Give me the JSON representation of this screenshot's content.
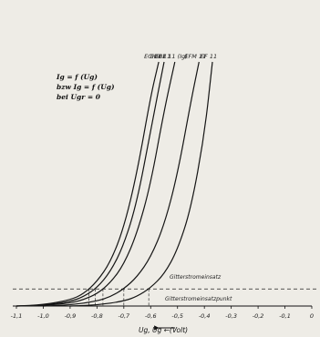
{
  "chart_data": {
    "type": "line",
    "xlabel": "Ug, Ug ←(Volt)",
    "formula": [
      "Ig = f (Ug)",
      "bzw Ig = f (Ug)",
      "bei Ugr = 0"
    ],
    "xlim": [
      -1.1,
      0
    ],
    "x_ticks": [
      -1.1,
      -1.0,
      -0.9,
      -0.8,
      -0.7,
      -0.6,
      -0.5,
      -0.4,
      -0.3,
      -0.2,
      -0.1,
      0
    ],
    "x_tick_labels": [
      "-1,1",
      "-1,0",
      "-0,9",
      "-0,8",
      "-0,7",
      "-0,6",
      "-0,5",
      "-0,4",
      "-0,3",
      "-0,2",
      "-0,1",
      "0"
    ],
    "ylim": [
      0,
      1
    ],
    "grid": false,
    "series": [
      {
        "name": "ECH 11",
        "x": [
          -1.1,
          -1.0,
          -0.9,
          -0.85,
          -0.8,
          -0.75,
          -0.7,
          -0.65,
          -0.6,
          -0.57
        ],
        "y": [
          0.0,
          0.005,
          0.025,
          0.05,
          0.1,
          0.18,
          0.32,
          0.55,
          0.86,
          1.0
        ]
      },
      {
        "name": "EBF 11",
        "x": [
          -1.1,
          -1.0,
          -0.9,
          -0.85,
          -0.8,
          -0.75,
          -0.7,
          -0.65,
          -0.6,
          -0.55
        ],
        "y": [
          0.0,
          0.003,
          0.018,
          0.038,
          0.075,
          0.14,
          0.25,
          0.43,
          0.72,
          1.0
        ]
      },
      {
        "name": "EBF 11 (Ig)",
        "x": [
          -1.1,
          -1.0,
          -0.9,
          -0.85,
          -0.8,
          -0.75,
          -0.7,
          -0.65,
          -0.6,
          -0.55,
          -0.51
        ],
        "y": [
          0.0,
          0.002,
          0.012,
          0.026,
          0.05,
          0.095,
          0.17,
          0.3,
          0.5,
          0.8,
          1.0
        ]
      },
      {
        "name": "EFM 11",
        "x": [
          -1.0,
          -0.9,
          -0.8,
          -0.75,
          -0.7,
          -0.65,
          -0.6,
          -0.55,
          -0.5,
          -0.45,
          -0.42
        ],
        "y": [
          0.0,
          0.004,
          0.02,
          0.038,
          0.07,
          0.12,
          0.2,
          0.33,
          0.54,
          0.84,
          1.0
        ]
      },
      {
        "name": "EF 11",
        "x": [
          -0.9,
          -0.8,
          -0.7,
          -0.65,
          -0.6,
          -0.55,
          -0.5,
          -0.45,
          -0.4,
          -0.37
        ],
        "y": [
          0.0,
          0.004,
          0.02,
          0.04,
          0.075,
          0.13,
          0.23,
          0.4,
          0.7,
          1.0
        ]
      }
    ],
    "annotations": [
      {
        "text": "Gitterstromeinsatz",
        "kind": "level",
        "y": 0.07
      },
      {
        "text": "Gitterstromeinsatzpunkt",
        "kind": "baseline",
        "y": 0.0
      }
    ],
    "legend": "curve labels at top of each curve"
  }
}
